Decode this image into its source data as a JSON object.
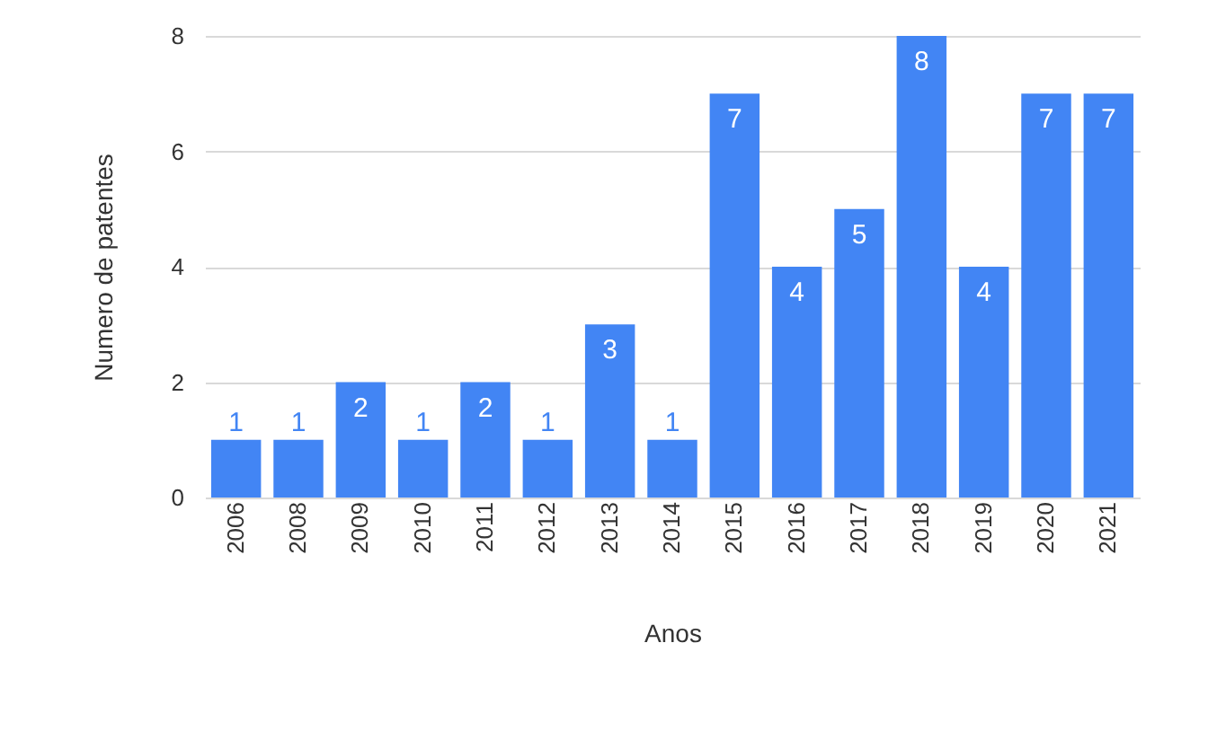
{
  "chart_data": {
    "type": "bar",
    "xlabel": "Anos",
    "ylabel": "Numero de patentes",
    "categories": [
      "2006",
      "2008",
      "2009",
      "2010",
      "2011",
      "2012",
      "2013",
      "2014",
      "2015",
      "2016",
      "2017",
      "2018",
      "2019",
      "2020",
      "2021"
    ],
    "values": [
      1,
      1,
      2,
      1,
      2,
      1,
      3,
      1,
      7,
      4,
      5,
      8,
      4,
      7,
      7
    ],
    "color": "#4285f4",
    "ylim": [
      0,
      8
    ],
    "yticks": [
      0,
      2,
      4,
      6,
      8
    ],
    "grid": "y",
    "data_labels": true
  }
}
